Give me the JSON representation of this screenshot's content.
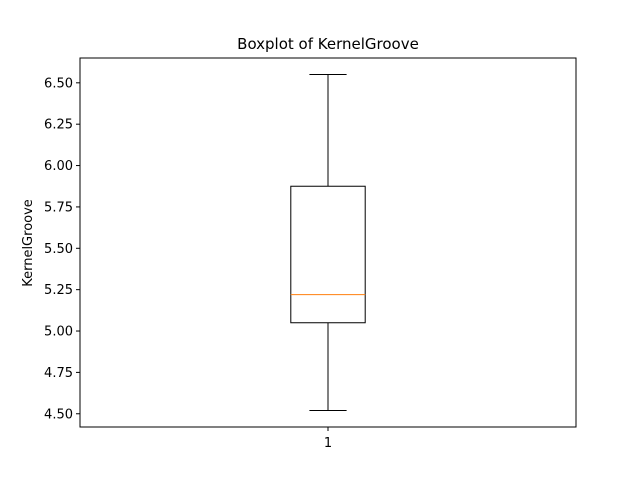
{
  "chart_data": {
    "type": "boxplot",
    "title": "Boxplot of KernelGroove",
    "xlabel": "",
    "ylabel": "KernelGroove",
    "categories": [
      "1"
    ],
    "boxes": [
      {
        "whisker_low": 4.52,
        "q1": 5.05,
        "median": 5.22,
        "q3": 5.875,
        "whisker_high": 6.55
      }
    ],
    "ylim": [
      4.42,
      6.65
    ],
    "yticks": [
      "4.50",
      "4.75",
      "5.00",
      "5.25",
      "5.50",
      "5.75",
      "6.00",
      "6.25",
      "6.50"
    ],
    "grid": false,
    "colors": {
      "box": "#000000",
      "median": "#ff7f0e",
      "whisker": "#000000"
    }
  }
}
